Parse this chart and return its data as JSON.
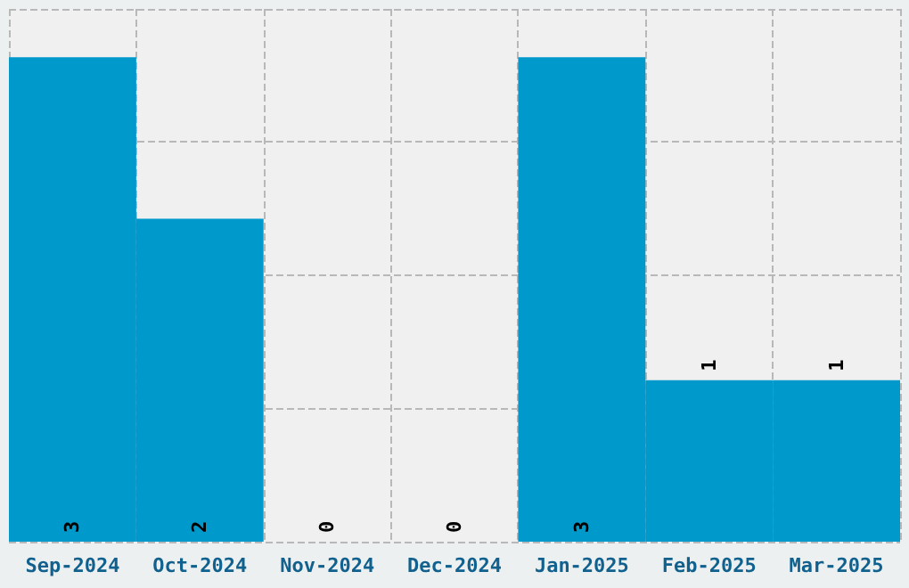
{
  "chart_data": {
    "type": "bar",
    "categories": [
      "Sep-2024",
      "Oct-2024",
      "Nov-2024",
      "Dec-2024",
      "Jan-2025",
      "Feb-2025",
      "Mar-2025"
    ],
    "values": [
      3,
      2,
      0,
      0,
      3,
      1,
      1
    ],
    "color": "#0099cc",
    "data_labels": true,
    "ylim": [
      0,
      3.3
    ],
    "yticks": [
      {
        "value": 0,
        "label": null
      },
      {
        "value": 0.825,
        "label": null
      },
      {
        "value": 1.65,
        "label": null
      },
      {
        "value": 2.475,
        "label": null
      },
      {
        "value": 3.3,
        "label": null
      }
    ],
    "tick_labels": "x",
    "grid": true
  }
}
